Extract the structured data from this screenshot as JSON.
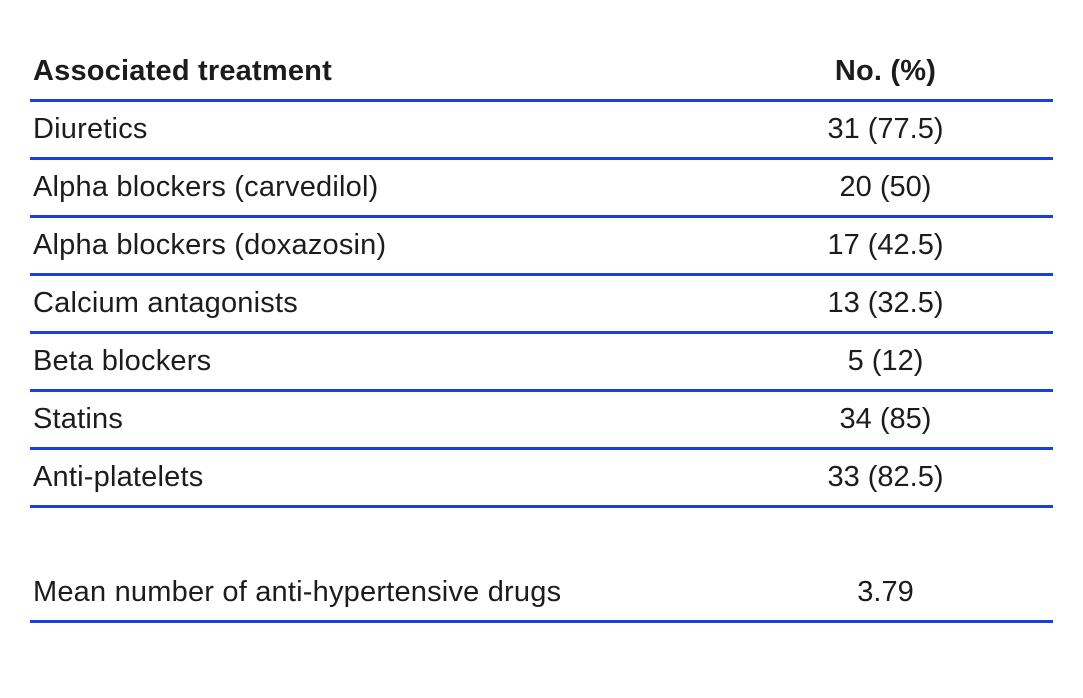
{
  "table": {
    "header": {
      "treatment_col": "Associated treatment",
      "value_col": "No. (%)"
    },
    "rows": [
      {
        "label": "Diuretics",
        "value": "31 (77.5)"
      },
      {
        "label": "Alpha blockers (carvedilol)",
        "value": "20 (50)"
      },
      {
        "label": "Alpha blockers (doxazosin)",
        "value": "17 (42.5)"
      },
      {
        "label": "Calcium antagonists",
        "value": "13 (32.5)"
      },
      {
        "label": "Beta blockers",
        "value": "5 (12)"
      },
      {
        "label": "Statins",
        "value": "34 (85)"
      },
      {
        "label": "Anti-platelets",
        "value": "33 (82.5)"
      }
    ],
    "footer": {
      "label": "Mean number of anti-hypertensive drugs",
      "value": "3.79"
    }
  },
  "colors": {
    "line": "#1a3ee0",
    "text": "#1c1c1c"
  }
}
